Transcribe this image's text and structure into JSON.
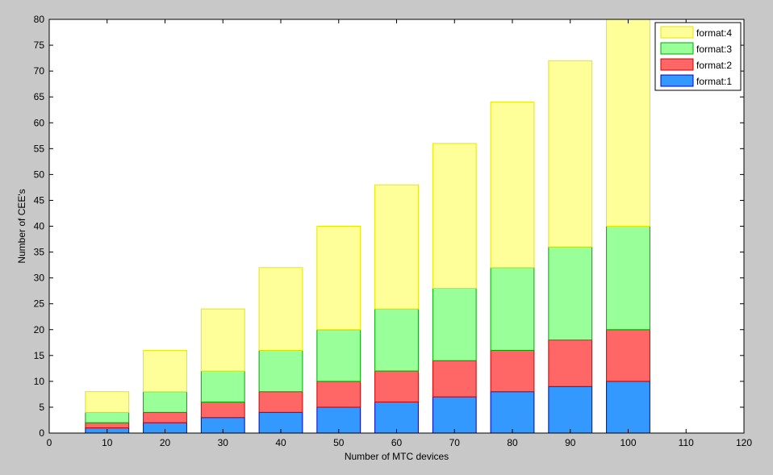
{
  "chart_data": {
    "type": "bar",
    "stacked": true,
    "xlabel": "Number of MTC devices",
    "ylabel": "Number of CEE's",
    "xlim": [
      0,
      120
    ],
    "ylim": [
      0,
      80
    ],
    "xticks": [
      0,
      10,
      20,
      30,
      40,
      50,
      60,
      70,
      80,
      90,
      100,
      110,
      120
    ],
    "yticks": [
      0,
      5,
      10,
      15,
      20,
      25,
      30,
      35,
      40,
      45,
      50,
      55,
      60,
      65,
      70,
      75,
      80
    ],
    "bar_width": 7.5,
    "grid": false,
    "legend_position": "top-right",
    "x": [
      10,
      20,
      30,
      40,
      50,
      60,
      70,
      80,
      90,
      100
    ],
    "series": [
      {
        "name": "format:1",
        "color": "#3399ff",
        "edge": "#0000cc",
        "values": [
          1,
          2,
          3,
          4,
          5,
          6,
          7,
          8,
          9,
          10
        ]
      },
      {
        "name": "format:2",
        "color": "#ff6666",
        "edge": "#cc0000",
        "values": [
          1,
          2,
          3,
          4,
          5,
          6,
          7,
          8,
          9,
          10
        ]
      },
      {
        "name": "format:3",
        "color": "#99ff99",
        "edge": "#00aa00",
        "values": [
          2,
          4,
          6,
          8,
          10,
          12,
          14,
          16,
          18,
          20
        ]
      },
      {
        "name": "format:4",
        "color": "#ffff99",
        "edge": "#e6e600",
        "values": [
          4,
          8,
          12,
          16,
          20,
          24,
          28,
          32,
          36,
          40
        ]
      }
    ]
  }
}
